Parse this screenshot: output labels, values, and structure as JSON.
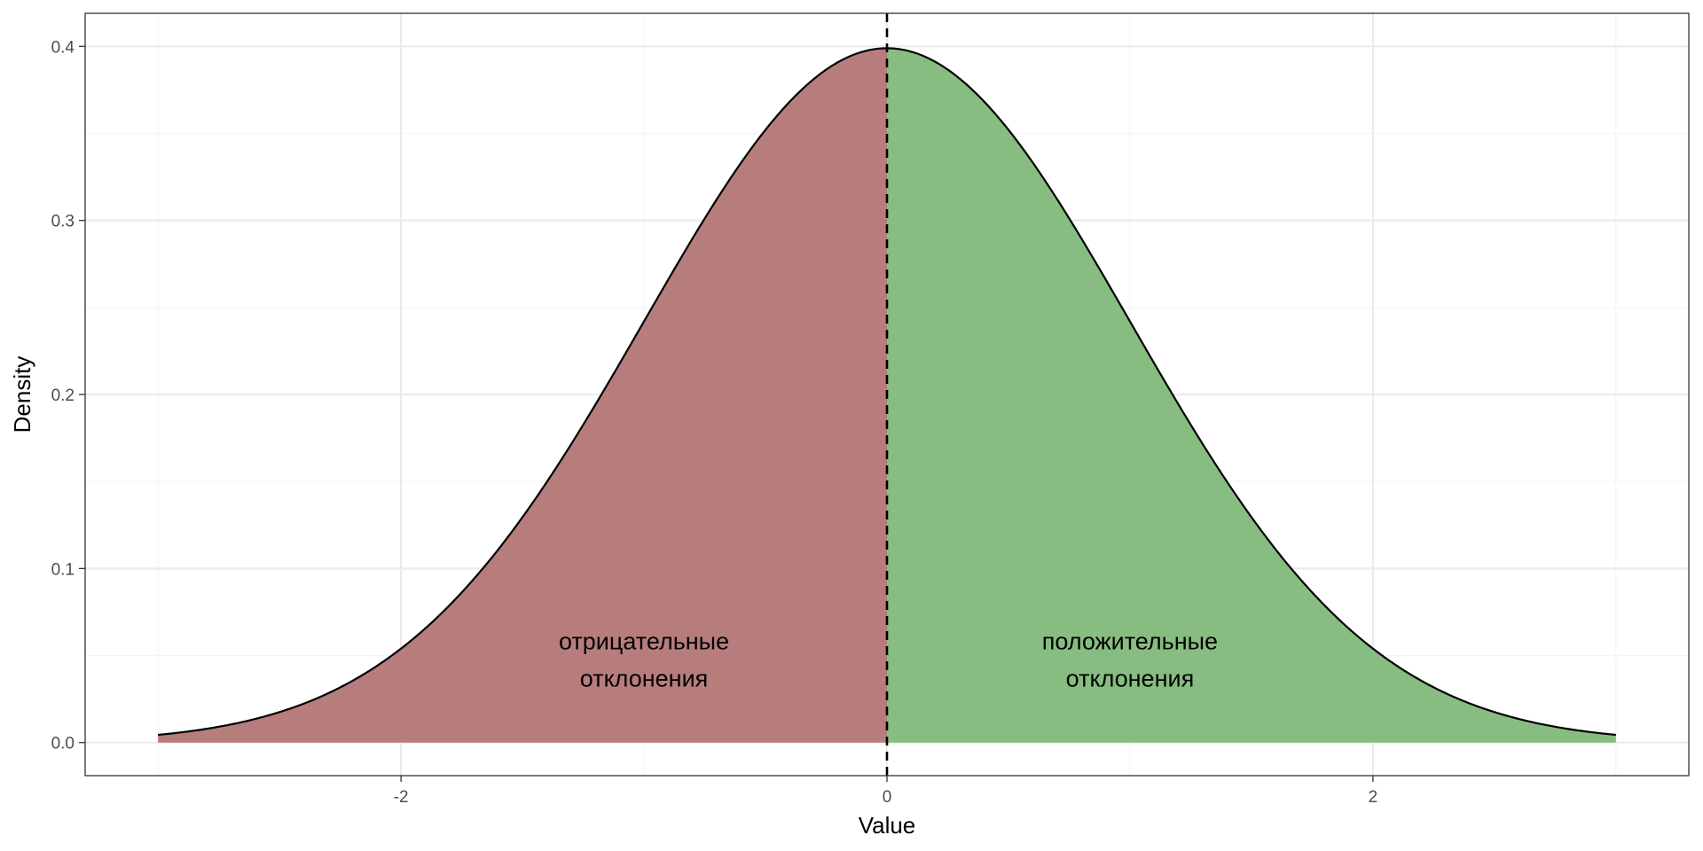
{
  "chart_data": {
    "type": "area",
    "title": "",
    "xlabel": "Value",
    "ylabel": "Density",
    "xlim": [
      -3.3,
      3.3
    ],
    "ylim": [
      -0.019,
      0.419
    ],
    "x_range": [
      -3,
      3
    ],
    "x_ticks": [
      -2,
      0,
      2
    ],
    "x_tick_labels": [
      "-2",
      "0",
      "2"
    ],
    "y_ticks": [
      0.0,
      0.1,
      0.2,
      0.3,
      0.4
    ],
    "y_tick_labels": [
      "0.0",
      "0.1",
      "0.2",
      "0.3",
      "0.4"
    ],
    "distribution": {
      "name": "normal",
      "mean": 0,
      "sd": 1
    },
    "curve_points": {
      "x": [
        -3,
        -2.5,
        -2,
        -1.5,
        -1,
        -0.5,
        0,
        0.5,
        1,
        1.5,
        2,
        2.5,
        3
      ],
      "y": [
        0.0044,
        0.0175,
        0.054,
        0.1295,
        0.242,
        0.3521,
        0.3989,
        0.3521,
        0.242,
        0.1295,
        0.054,
        0.0175,
        0.0044
      ]
    },
    "series": [
      {
        "x_from": -3,
        "x_to": 0,
        "color": "#b77d7d"
      },
      {
        "x_from": 0,
        "x_to": 3,
        "color": "#87bd80"
      }
    ],
    "vline": {
      "x": 0,
      "style": "dashed",
      "color": "#000000"
    },
    "annotations": [
      {
        "x": -1,
        "y": 0.048,
        "lines": [
          "отрицательные",
          "отклонения"
        ]
      },
      {
        "x": 1,
        "y": 0.048,
        "lines": [
          "положительные",
          "отклонения"
        ]
      }
    ],
    "grid": true,
    "legend": "none",
    "colors": {
      "curve": "#000000",
      "grid_major": "#ebebeb",
      "grid_minor": "#f4f4f4",
      "panel_border": "#333333"
    }
  }
}
